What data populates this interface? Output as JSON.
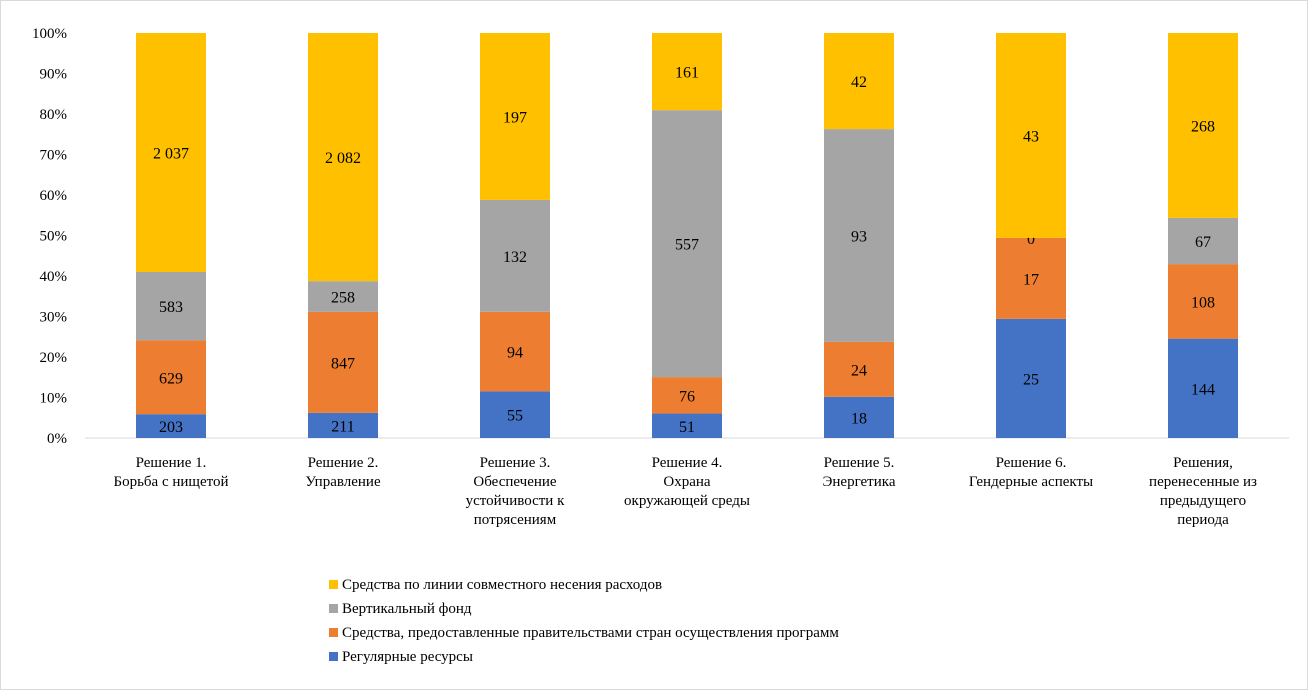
{
  "chart_data": {
    "type": "bar",
    "stacked": "percent",
    "categories": [
      [
        "Решение 1.",
        "Борьба с нищетой"
      ],
      [
        "Решение 2.",
        "Управление"
      ],
      [
        "Решение 3.",
        "Обеспечение",
        "устойчивости к",
        "потрясениям"
      ],
      [
        "Решение 4.",
        "Охрана",
        "окружающей среды"
      ],
      [
        "Решение 5.",
        "Энергетика"
      ],
      [
        "Решение 6.",
        "Гендерные аспекты"
      ],
      [
        "Решения,",
        "перенесенные из",
        "предыдущего",
        "периода"
      ]
    ],
    "series": [
      {
        "name": "Регулярные ресурсы",
        "color": "#4472c4",
        "values": [
          203,
          211,
          55,
          51,
          18,
          25,
          144
        ],
        "labels": [
          "203",
          "211",
          "55",
          "51",
          "18",
          "25",
          "144"
        ]
      },
      {
        "name": "Средства, предоставленные правительствами стран осуществления программ",
        "color": "#ed7d31",
        "values": [
          629,
          847,
          94,
          76,
          24,
          17,
          108
        ],
        "labels": [
          "629",
          "847",
          "94",
          "76",
          "24",
          "17",
          "108"
        ]
      },
      {
        "name": "Вертикальный фонд",
        "color": "#a5a5a5",
        "values": [
          583,
          258,
          132,
          557,
          93,
          0,
          67
        ],
        "labels": [
          "583",
          "258",
          "132",
          "557",
          "93",
          "0",
          "67"
        ]
      },
      {
        "name": "Средства по линии совместного несения расходов",
        "color": "#ffc000",
        "values": [
          2037,
          2082,
          197,
          161,
          42,
          43,
          268
        ],
        "labels": [
          "2 037",
          "2 082",
          "197",
          "161",
          "42",
          "43",
          "268"
        ]
      }
    ],
    "y_ticks": [
      "0%",
      "10%",
      "20%",
      "30%",
      "40%",
      "50%",
      "60%",
      "70%",
      "80%",
      "90%",
      "100%"
    ],
    "ylim": [
      0,
      100
    ],
    "grid": false,
    "legend_position": "bottom",
    "legend_order": [
      3,
      2,
      1,
      0
    ]
  }
}
